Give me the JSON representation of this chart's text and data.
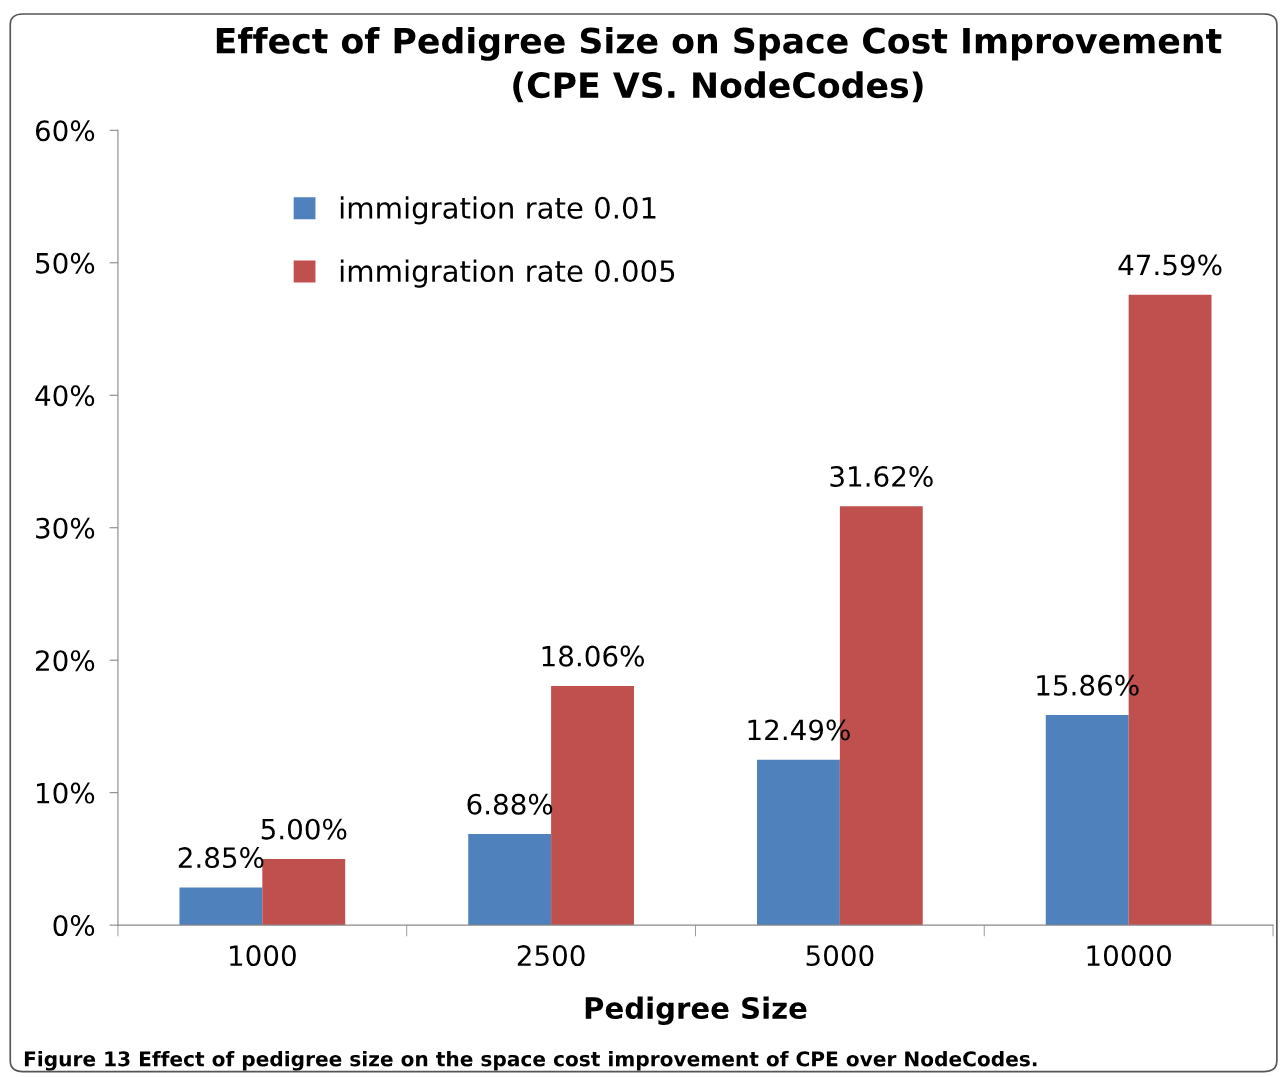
{
  "chart_data": {
    "type": "bar",
    "title": "Effect of Pedigree Size on Space Cost Improvement\n(CPE VS. NodeCodes)",
    "xlabel": "Pedigree Size",
    "categories": [
      "1000",
      "2500",
      "5000",
      "10000"
    ],
    "series": [
      {
        "name": "immigration rate 0.01",
        "color": "#4f81bd",
        "values": [
          2.85,
          6.88,
          12.49,
          15.86
        ],
        "value_labels": [
          "2.85%",
          "6.88%",
          "12.49%",
          "15.86%"
        ]
      },
      {
        "name": "immigration rate 0.005",
        "color": "#c0504d",
        "values": [
          5.0,
          18.06,
          31.62,
          47.59
        ],
        "value_labels": [
          "5.00%",
          "18.06%",
          "31.62%",
          "47.59%"
        ]
      }
    ],
    "ylim": [
      0,
      60
    ],
    "yticks": [
      {
        "value": 0,
        "label": "0%"
      },
      {
        "value": 10,
        "label": "10%"
      },
      {
        "value": 20,
        "label": "20%"
      },
      {
        "value": 30,
        "label": "30%"
      },
      {
        "value": 40,
        "label": "40%"
      },
      {
        "value": 50,
        "label": "50%"
      },
      {
        "value": 60,
        "label": "60%"
      }
    ],
    "grid": false,
    "legend": "top left",
    "annotations": [
      "Figure 13 Effect of pedigree size on the space cost improvement of CPE over NodeCodes."
    ]
  }
}
